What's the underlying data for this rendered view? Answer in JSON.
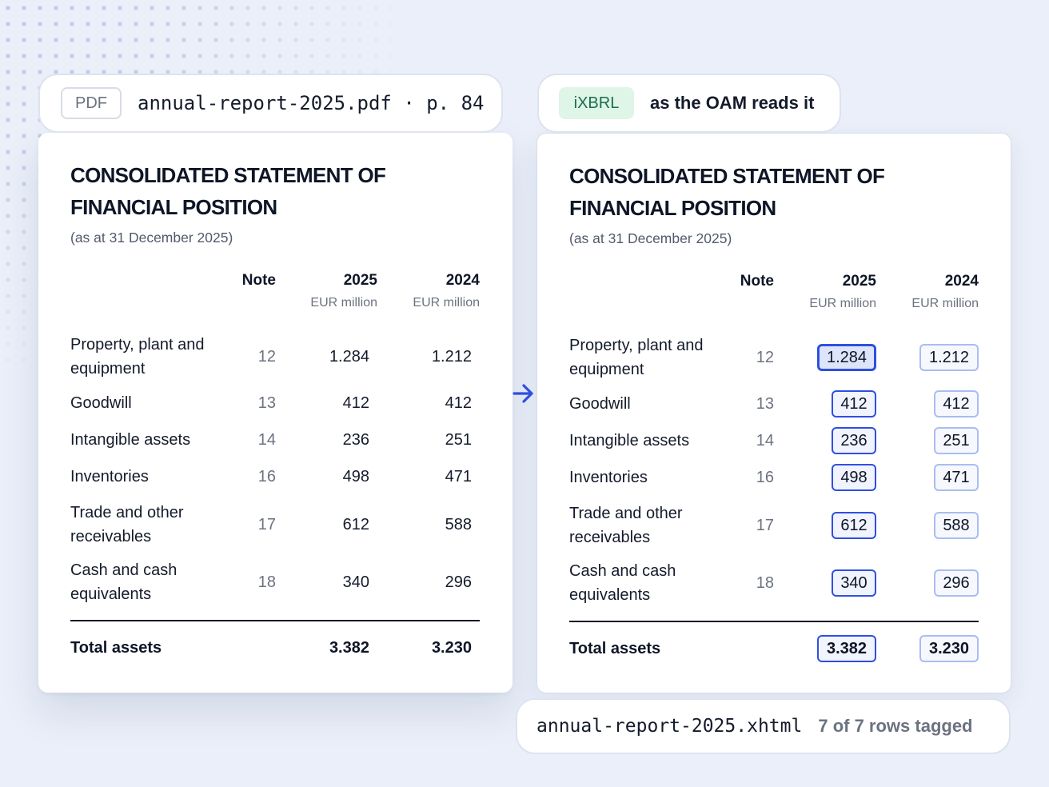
{
  "source": {
    "badge": "PDF",
    "file": "annual-report-2025.pdf · p. 84"
  },
  "output": {
    "badge": "iXBRL",
    "caption": "as the OAM reads it",
    "file": "annual-report-2025.xhtml",
    "status": "7 of 7 rows tagged"
  },
  "statement": {
    "title_line1": "CONSOLIDATED STATEMENT OF",
    "title_line2": "FINANCIAL POSITION",
    "subtitle": "(as at 31 December 2025)",
    "columns": {
      "note": "Note",
      "y2025": "2025",
      "y2024": "2024",
      "unit2025": "EUR million",
      "unit2024": "EUR million"
    },
    "rows": [
      {
        "label_line1": "Property, plant and",
        "label_line2": "equipment",
        "note": "12",
        "v2025": "1.284",
        "v2024": "1.212"
      },
      {
        "label_line1": "Goodwill",
        "label_line2": "",
        "note": "13",
        "v2025": "412",
        "v2024": "412"
      },
      {
        "label_line1": "Intangible assets",
        "label_line2": "",
        "note": "14",
        "v2025": "236",
        "v2024": "251"
      },
      {
        "label_line1": "Inventories",
        "label_line2": "",
        "note": "16",
        "v2025": "498",
        "v2024": "471"
      },
      {
        "label_line1": "Trade and other",
        "label_line2": "receivables",
        "note": "17",
        "v2025": "612",
        "v2024": "588"
      },
      {
        "label_line1": "Cash and cash",
        "label_line2": "equivalents",
        "note": "18",
        "v2025": "340",
        "v2024": "296"
      }
    ],
    "total": {
      "label": "Total assets",
      "v2025": "3.382",
      "v2024": "3.230"
    }
  },
  "icons": {
    "arrow": "arrow-right-icon"
  },
  "colors": {
    "accent": "#2f4fe0",
    "tag_2024_border": "#a9bdf0",
    "ixbrl_badge_bg": "#def5e8",
    "ixbrl_badge_text": "#1c6e45",
    "background": "#eaeff9"
  }
}
